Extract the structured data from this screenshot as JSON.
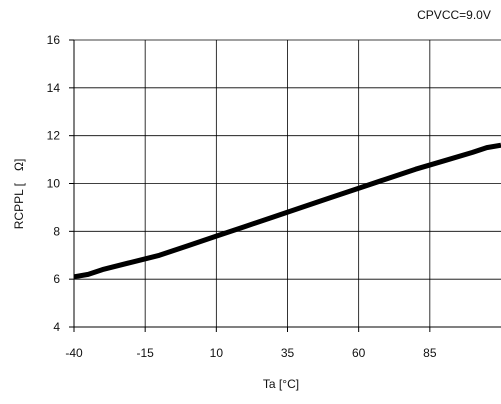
{
  "chart_data": {
    "type": "line",
    "title": "",
    "annotation": "CPVCC=9.0V",
    "xlabel": "Ta [°C]",
    "ylabel": "RCPPL [　Ω]",
    "xlim": [
      -40,
      110
    ],
    "ylim": [
      4,
      16
    ],
    "xticks": [
      -40,
      -15,
      10,
      35,
      60,
      85
    ],
    "yticks": [
      4,
      6,
      8,
      10,
      12,
      14,
      16
    ],
    "grid": true,
    "series": [
      {
        "color": "#000000",
        "x": [
          -40,
          -35,
          -30,
          -20,
          -10,
          0,
          10,
          20,
          30,
          40,
          50,
          60,
          70,
          80,
          90,
          100,
          105,
          110
        ],
        "y": [
          6.1,
          6.2,
          6.4,
          6.7,
          7.0,
          7.4,
          7.8,
          8.2,
          8.6,
          9.0,
          9.4,
          9.8,
          10.2,
          10.6,
          10.95,
          11.3,
          11.5,
          11.6
        ]
      }
    ]
  }
}
